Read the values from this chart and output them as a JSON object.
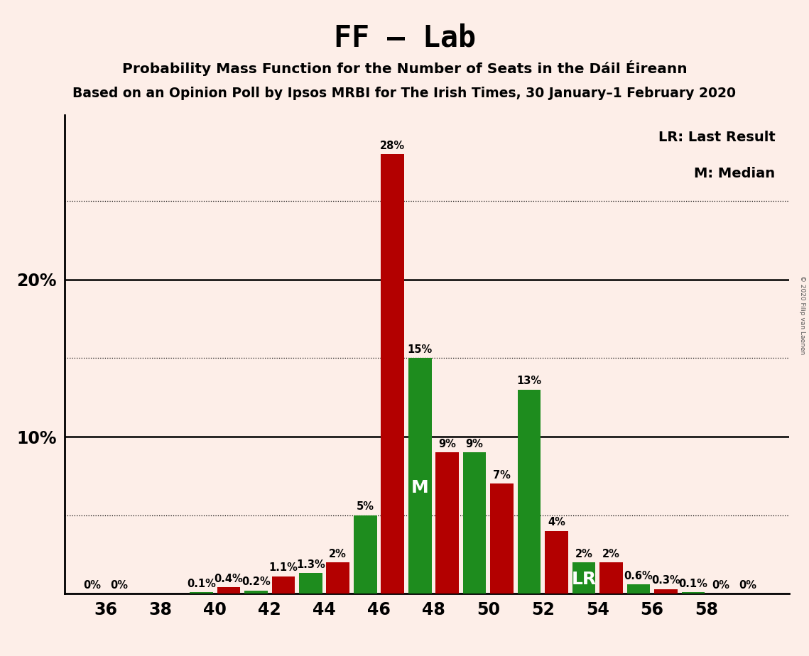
{
  "title": "FF – Lab",
  "subtitle1": "Probability Mass Function for the Number of Seats in the Dáil Éireann",
  "subtitle2": "Based on an Opinion Poll by Ipsos MRBI for The Irish Times, 30 January–1 February 2020",
  "copyright": "© 2020 Filip van Laenen",
  "legend1": "LR: Last Result",
  "legend2": "M: Median",
  "background_color": "#fdeee8",
  "bar_color_red": "#b30000",
  "bar_color_green": "#1e8c1e",
  "bar_width": 0.85,
  "bars": [
    [
      36,
      0.0,
      "red",
      "0%",
      null
    ],
    [
      37,
      0.0,
      "green",
      "0%",
      null
    ],
    [
      40,
      0.1,
      "green",
      "0.1%",
      null
    ],
    [
      41,
      0.4,
      "red",
      "0.4%",
      null
    ],
    [
      42,
      0.2,
      "green",
      "0.2%",
      null
    ],
    [
      43,
      1.1,
      "red",
      "1.1%",
      null
    ],
    [
      44,
      1.3,
      "green",
      "1.3%",
      null
    ],
    [
      45,
      2.0,
      "red",
      "2%",
      null
    ],
    [
      46,
      5.0,
      "green",
      "5%",
      null
    ],
    [
      47,
      28.0,
      "red",
      "28%",
      null
    ],
    [
      48,
      15.0,
      "green",
      "15%",
      "M"
    ],
    [
      49,
      9.0,
      "red",
      "9%",
      null
    ],
    [
      50,
      9.0,
      "green",
      "9%",
      null
    ],
    [
      51,
      7.0,
      "red",
      "7%",
      null
    ],
    [
      52,
      13.0,
      "green",
      "13%",
      null
    ],
    [
      53,
      4.0,
      "red",
      "4%",
      null
    ],
    [
      54,
      2.0,
      "green",
      "2%",
      "LR"
    ],
    [
      55,
      2.0,
      "red",
      "2%",
      null
    ],
    [
      56,
      0.6,
      "green",
      "0.6%",
      null
    ],
    [
      57,
      0.3,
      "red",
      "0.3%",
      null
    ],
    [
      58,
      0.1,
      "green",
      "0.1%",
      null
    ],
    [
      59,
      0.0,
      "red",
      "0%",
      null
    ],
    [
      60,
      0.0,
      "green",
      "0%",
      null
    ]
  ],
  "xlim": [
    34.5,
    61.5
  ],
  "ylim": [
    0,
    30.5
  ],
  "solid_hlines": [
    10,
    20
  ],
  "dotted_hlines": [
    5,
    15,
    25
  ],
  "ytick_positions": [
    10,
    20
  ],
  "ytick_labels": [
    "10%",
    "20%"
  ],
  "xtick_positions": [
    36,
    38,
    40,
    42,
    44,
    46,
    48,
    50,
    52,
    54,
    56,
    58
  ],
  "xtick_labels": [
    "36",
    "38",
    "40",
    "42",
    "44",
    "46",
    "48",
    "50",
    "52",
    "54",
    "56",
    "58"
  ],
  "label_fontsize": 10.5,
  "tick_fontsize": 17,
  "title_fontsize": 30,
  "sub1_fontsize": 14.5,
  "sub2_fontsize": 13.5,
  "legend_fontsize": 14
}
